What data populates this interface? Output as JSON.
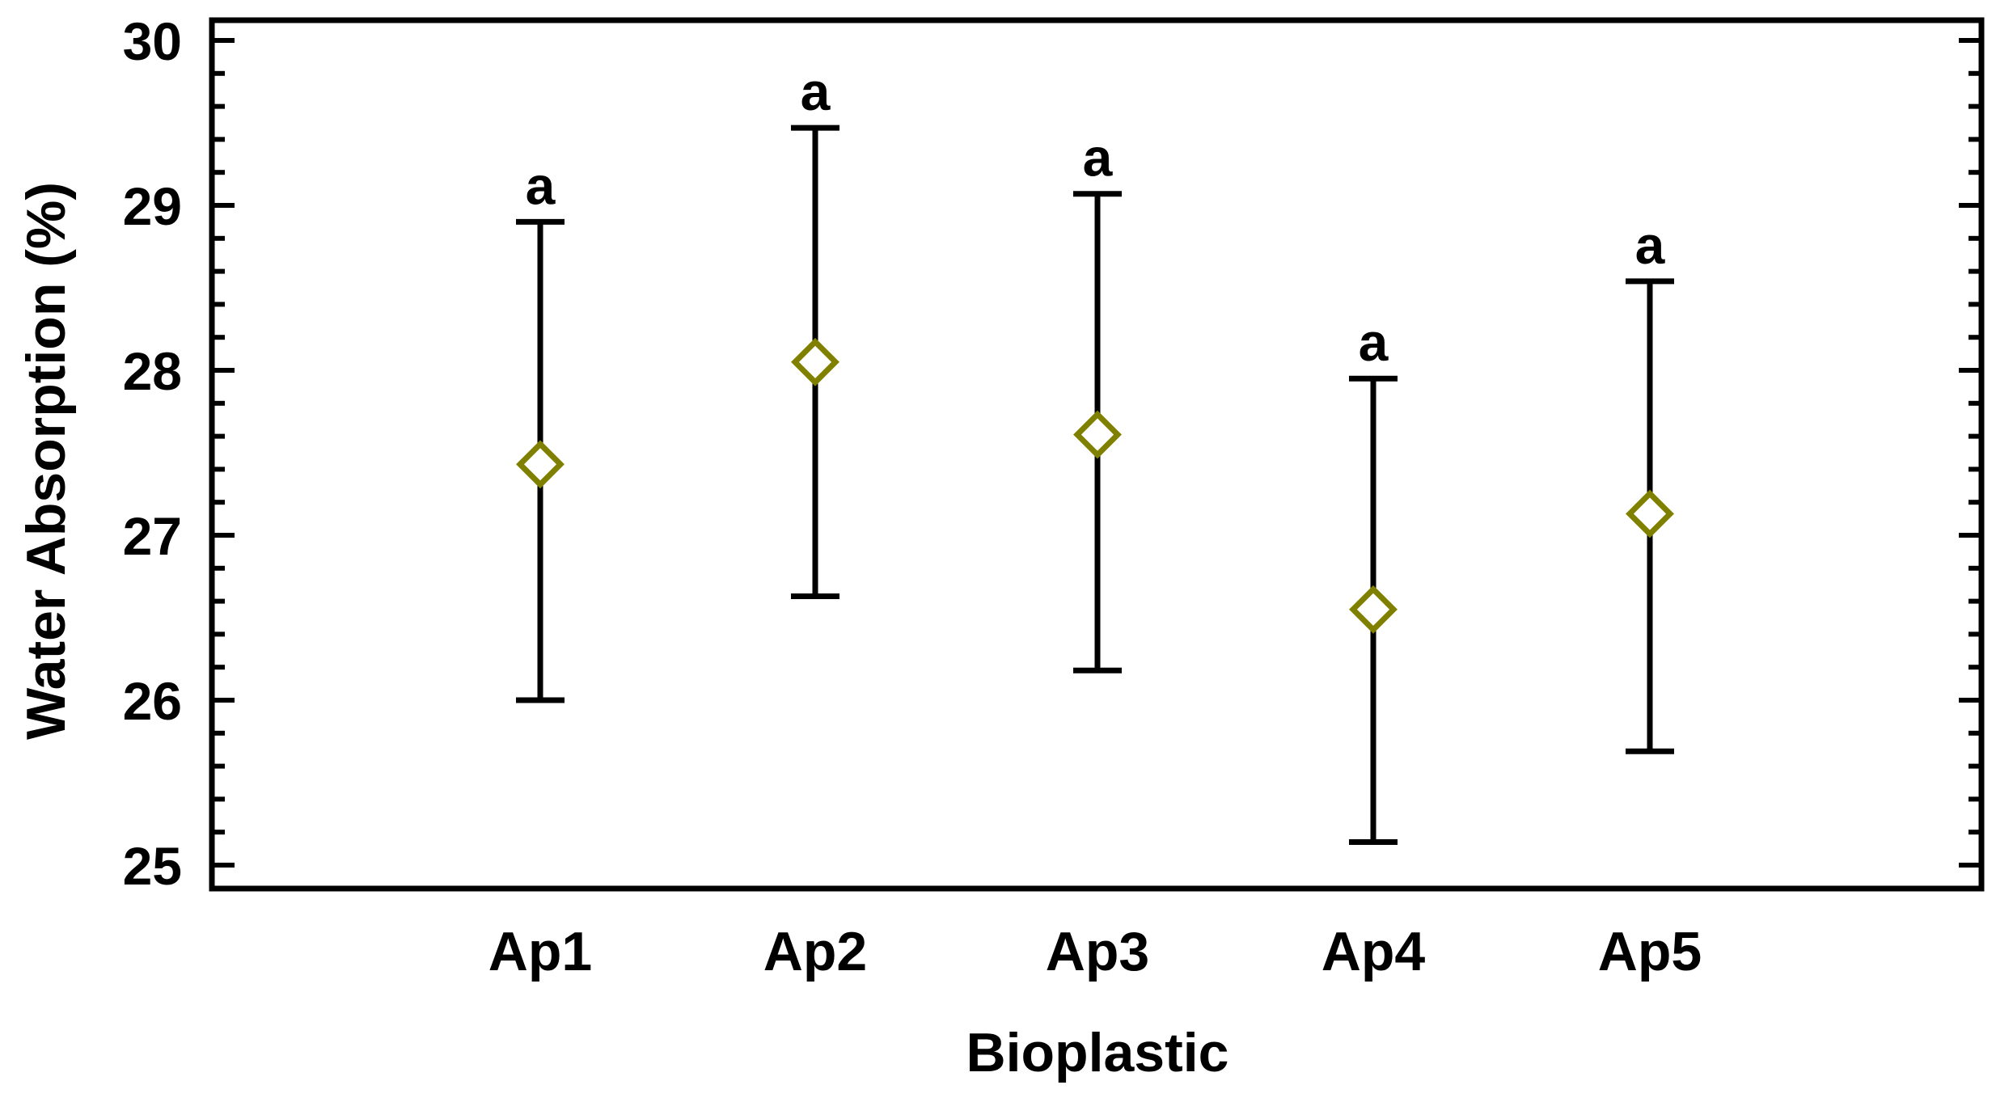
{
  "chart_data": {
    "type": "scatter",
    "subtype": "means-with-error-bars",
    "title": "",
    "xlabel": "Bioplastic",
    "ylabel": "Water Absorption (%)",
    "ylim": [
      25,
      30
    ],
    "yticks": [
      25,
      26,
      27,
      28,
      29,
      30
    ],
    "ytick_labels": [
      "25",
      "26",
      "27",
      "28",
      "29",
      "30"
    ],
    "categories": [
      "Ap1",
      "Ap2",
      "Ap3",
      "Ap4",
      "Ap5"
    ],
    "series": [
      {
        "name": "Water Absorption",
        "marker": "diamond-open",
        "color": "#808000",
        "means": [
          27.43,
          28.05,
          27.61,
          26.55,
          27.13
        ],
        "lower": [
          26.0,
          26.63,
          26.18,
          25.14,
          25.69
        ],
        "upper": [
          28.9,
          29.47,
          29.07,
          27.95,
          28.54
        ]
      }
    ],
    "annotations": [
      "a",
      "a",
      "a",
      "a",
      "a"
    ],
    "errorbar_color": "#000000",
    "grid": false,
    "legend": "none"
  }
}
